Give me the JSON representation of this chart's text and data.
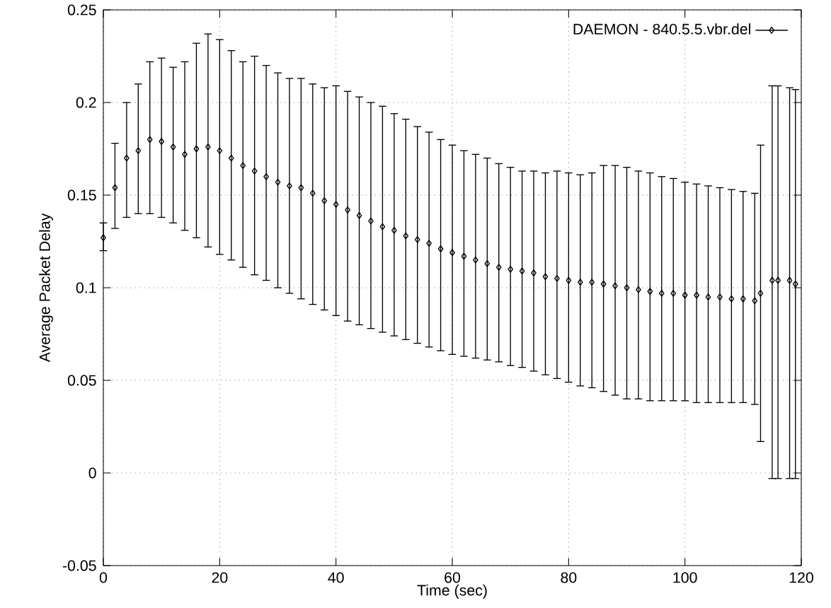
{
  "chart_data": {
    "type": "scatter",
    "xlabel": "Time (sec)",
    "ylabel": "Average Packet Delay",
    "x": [
      0,
      2,
      4,
      6,
      8,
      10,
      12,
      14,
      16,
      18,
      20,
      22,
      24,
      26,
      28,
      30,
      32,
      34,
      36,
      38,
      40,
      42,
      44,
      46,
      48,
      50,
      52,
      54,
      56,
      58,
      60,
      62,
      64,
      66,
      68,
      70,
      72,
      74,
      76,
      78,
      80,
      82,
      84,
      86,
      88,
      90,
      92,
      94,
      96,
      98,
      100,
      102,
      104,
      106,
      108,
      110,
      112,
      113,
      115,
      116,
      118,
      119
    ],
    "series": [
      {
        "name": "DAEMON - 840.5.5.vbr.del",
        "color": "#000000",
        "values": [
          0.127,
          0.154,
          0.17,
          0.174,
          0.18,
          0.179,
          0.176,
          0.172,
          0.175,
          0.176,
          0.174,
          0.17,
          0.166,
          0.163,
          0.16,
          0.157,
          0.155,
          0.154,
          0.151,
          0.147,
          0.145,
          0.142,
          0.139,
          0.136,
          0.133,
          0.131,
          0.128,
          0.126,
          0.124,
          0.121,
          0.119,
          0.117,
          0.115,
          0.113,
          0.111,
          0.11,
          0.109,
          0.108,
          0.106,
          0.105,
          0.104,
          0.103,
          0.103,
          0.102,
          0.101,
          0.1,
          0.099,
          0.098,
          0.097,
          0.097,
          0.096,
          0.096,
          0.095,
          0.095,
          0.094,
          0.094,
          0.093,
          0.097,
          0.104,
          0.104,
          0.104,
          0.102
        ],
        "errors": [
          [
            0.12,
            0.135
          ],
          [
            0.132,
            0.178
          ],
          [
            0.138,
            0.2
          ],
          [
            0.14,
            0.21
          ],
          [
            0.14,
            0.222
          ],
          [
            0.138,
            0.224
          ],
          [
            0.135,
            0.219
          ],
          [
            0.131,
            0.222
          ],
          [
            0.127,
            0.232
          ],
          [
            0.122,
            0.237
          ],
          [
            0.118,
            0.234
          ],
          [
            0.115,
            0.228
          ],
          [
            0.111,
            0.222
          ],
          [
            0.107,
            0.225
          ],
          [
            0.104,
            0.22
          ],
          [
            0.1,
            0.216
          ],
          [
            0.097,
            0.213
          ],
          [
            0.094,
            0.213
          ],
          [
            0.091,
            0.21
          ],
          [
            0.088,
            0.208
          ],
          [
            0.085,
            0.209
          ],
          [
            0.082,
            0.206
          ],
          [
            0.08,
            0.203
          ],
          [
            0.078,
            0.2
          ],
          [
            0.076,
            0.198
          ],
          [
            0.074,
            0.194
          ],
          [
            0.072,
            0.191
          ],
          [
            0.07,
            0.187
          ],
          [
            0.068,
            0.184
          ],
          [
            0.066,
            0.18
          ],
          [
            0.064,
            0.177
          ],
          [
            0.063,
            0.174
          ],
          [
            0.062,
            0.172
          ],
          [
            0.061,
            0.17
          ],
          [
            0.06,
            0.167
          ],
          [
            0.058,
            0.165
          ],
          [
            0.057,
            0.163
          ],
          [
            0.055,
            0.163
          ],
          [
            0.053,
            0.162
          ],
          [
            0.051,
            0.163
          ],
          [
            0.049,
            0.162
          ],
          [
            0.047,
            0.161
          ],
          [
            0.046,
            0.162
          ],
          [
            0.044,
            0.166
          ],
          [
            0.042,
            0.166
          ],
          [
            0.04,
            0.165
          ],
          [
            0.04,
            0.163
          ],
          [
            0.039,
            0.162
          ],
          [
            0.039,
            0.16
          ],
          [
            0.039,
            0.159
          ],
          [
            0.039,
            0.157
          ],
          [
            0.038,
            0.156
          ],
          [
            0.038,
            0.155
          ],
          [
            0.038,
            0.154
          ],
          [
            0.038,
            0.153
          ],
          [
            0.038,
            0.152
          ],
          [
            0.037,
            0.151
          ],
          [
            0.017,
            0.177
          ],
          [
            -0.003,
            0.209
          ],
          [
            -0.003,
            0.209
          ],
          [
            -0.003,
            0.208
          ],
          [
            -0.003,
            0.207
          ]
        ]
      }
    ],
    "xlim": [
      0,
      120
    ],
    "xticks": [
      0,
      20,
      40,
      60,
      80,
      100,
      120
    ],
    "ylim": [
      -0.05,
      0.25
    ],
    "yticks": [
      -0.05,
      0,
      0.05,
      0.1,
      0.15,
      0.2,
      0.25
    ],
    "grid": true,
    "legend": "top right",
    "marker": "diamond"
  }
}
